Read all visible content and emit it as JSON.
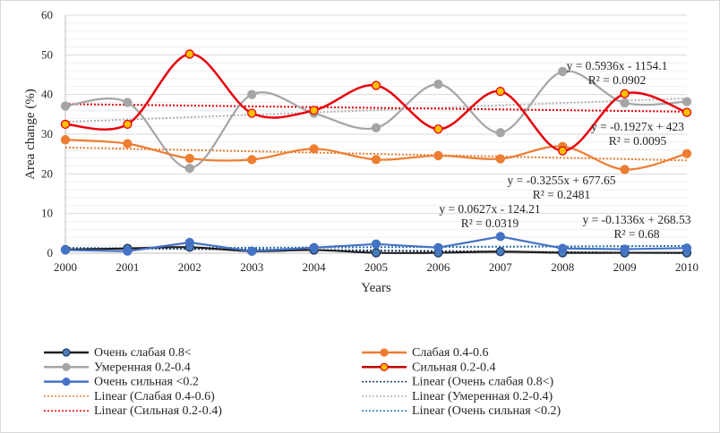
{
  "chart_data": {
    "type": "line",
    "title": "",
    "xlabel": "Years",
    "ylabel": "Area change (%)",
    "ylim": [
      0,
      60
    ],
    "yticks": [
      0,
      10,
      20,
      30,
      40,
      50,
      60
    ],
    "x": [
      2000,
      2001,
      2002,
      2003,
      2004,
      2005,
      2006,
      2007,
      2008,
      2009,
      2010
    ],
    "x_tick_labels": [
      "2000",
      "2001",
      "2002",
      "2003",
      "2004",
      "2005",
      "2006",
      "2007",
      "2008",
      "2009",
      "2010"
    ],
    "grid": true,
    "legend_position": "bottom",
    "series": [
      {
        "name": "Очень слабая 0.8<",
        "color": "#1f1f1f",
        "marker_fill": "#4a7ebb",
        "smooth": true,
        "values": [
          0.9,
          1.2,
          1.5,
          0.5,
          0.8,
          0.1,
          0.1,
          0.4,
          0.1,
          0.1,
          0.1
        ]
      },
      {
        "name": "Слабая 0.4-0.6",
        "color": "#ed7d31",
        "marker_fill": "#ed7d31",
        "smooth": true,
        "values": [
          28.6,
          27.6,
          23.9,
          23.6,
          26.3,
          23.6,
          24.6,
          23.8,
          26.9,
          21.1,
          25.1
        ]
      },
      {
        "name": "Умеренная 0.2-0.4",
        "color": "#a5a5a5",
        "marker_fill": "#a5a5a5",
        "smooth": true,
        "values": [
          37.1,
          38.0,
          21.4,
          40.0,
          35.3,
          31.6,
          42.6,
          30.4,
          45.8,
          37.9,
          38.2
        ]
      },
      {
        "name": "Сильная 0.2-0.4",
        "color": "#e8000b",
        "marker_fill": "#ffc000",
        "smooth": true,
        "values": [
          32.5,
          32.5,
          50.2,
          35.3,
          36.0,
          42.3,
          31.3,
          40.8,
          25.8,
          40.2,
          35.5
        ]
      },
      {
        "name": "Очень сильная <0.2",
        "color": "#4472c4",
        "marker_fill": "#4472c4",
        "smooth": false,
        "values": [
          0.8,
          0.5,
          2.7,
          0.5,
          1.4,
          2.3,
          1.4,
          4.2,
          1.2,
          1.0,
          1.3
        ]
      }
    ],
    "trendlines": [
      {
        "name": "Linear (Очень слабая 0.8<)",
        "of": "Очень слабая 0.8<",
        "color": "#1f3864",
        "slope": -0.1336,
        "intercept": 268.53,
        "equation": "y = -0.1336x + 268.53",
        "r2": "R² = 0.68"
      },
      {
        "name": "Linear (Слабая 0.4-0.6)",
        "of": "Слабая 0.4-0.6",
        "color": "#ed7d31",
        "slope": -0.3255,
        "intercept": 677.65,
        "equation": "y = -0.3255x + 677.65",
        "r2": "R² = 0.2481"
      },
      {
        "name": "Linear (Умеренная 0.2-0.4)",
        "of": "Умеренная 0.2-0.4",
        "color": "#b0b0b0",
        "slope": 0.5936,
        "intercept": -1154.1,
        "equation": "y = 0.5936x - 1154.1",
        "r2": "R² = 0.0902"
      },
      {
        "name": "Linear (Сильная 0.2-0.4)",
        "of": "Сильная 0.2-0.4",
        "color": "#e8000b",
        "slope": -0.1927,
        "intercept": 423,
        "equation": "y = -0.1927x + 423",
        "r2": "R² = 0.0095"
      },
      {
        "name": "Linear (Очень сильная <0.2)",
        "of": "Очень сильная <0.2",
        "color": "#2e75b6",
        "slope": 0.0627,
        "intercept": -124.21,
        "equation": "y = 0.0627x - 124.21",
        "r2": "R² = 0.0319"
      }
    ],
    "legend": {
      "left": [
        "Очень слабая 0.8<",
        "Умеренная 0.2-0.4",
        "Очень сильная <0.2",
        "Linear (Слабая 0.4-0.6)",
        "Linear (Сильная 0.2-0.4)"
      ],
      "right": [
        "Слабая 0.4-0.6",
        "Сильная 0.2-0.4",
        "Linear (Очень слабая 0.8<)",
        "Linear (Умеренная 0.2-0.4)",
        "Linear (Очень сильная <0.2)"
      ]
    }
  }
}
